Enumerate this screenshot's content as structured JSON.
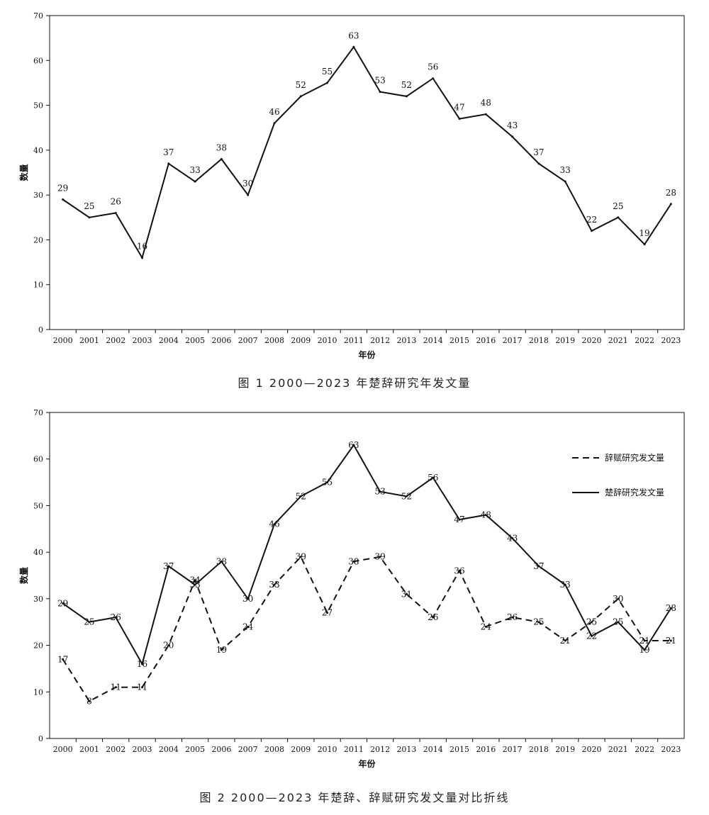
{
  "chart_data": [
    {
      "type": "line",
      "x": [
        2000,
        2001,
        2002,
        2003,
        2004,
        2005,
        2006,
        2007,
        2008,
        2009,
        2010,
        2011,
        2012,
        2013,
        2014,
        2015,
        2016,
        2017,
        2018,
        2019,
        2020,
        2021,
        2022,
        2023
      ],
      "series": [
        {
          "values": [
            29,
            25,
            26,
            16,
            37,
            33,
            38,
            30,
            46,
            52,
            55,
            63,
            53,
            52,
            56,
            47,
            48,
            43,
            37,
            33,
            22,
            25,
            19,
            28
          ],
          "style": "solid"
        }
      ],
      "xlabel": "年份",
      "ylabel": "数量",
      "ylim": [
        0,
        70
      ],
      "yticks": [
        0,
        10,
        20,
        30,
        40,
        50,
        60,
        70
      ],
      "grid": false,
      "caption": "图 1  2000—2023 年楚辞研究年发文量"
    },
    {
      "type": "line",
      "x": [
        2000,
        2001,
        2002,
        2003,
        2004,
        2005,
        2006,
        2007,
        2008,
        2009,
        2010,
        2011,
        2012,
        2013,
        2014,
        2015,
        2016,
        2017,
        2018,
        2019,
        2020,
        2021,
        2022,
        2023
      ],
      "series": [
        {
          "name": "辞赋研究发文量",
          "values": [
            17,
            8,
            11,
            11,
            20,
            34,
            19,
            24,
            33,
            39,
            27,
            38,
            39,
            31,
            26,
            36,
            24,
            26,
            25,
            21,
            25,
            30,
            21,
            21
          ],
          "style": "dashed"
        },
        {
          "name": "楚辞研究发文量",
          "values": [
            29,
            25,
            26,
            16,
            37,
            33,
            38,
            30,
            46,
            52,
            55,
            63,
            53,
            52,
            56,
            47,
            48,
            43,
            37,
            33,
            22,
            25,
            19,
            28
          ],
          "style": "solid"
        }
      ],
      "xlabel": "年份",
      "ylabel": "数量",
      "ylim": [
        0,
        70
      ],
      "yticks": [
        0,
        10,
        20,
        30,
        40,
        50,
        60,
        70
      ],
      "grid": false,
      "legend": "top-right",
      "caption": "图 2  2000—2023 年楚辞、辞赋研究发文量对比折线"
    }
  ],
  "colors": {
    "line": "#111111",
    "background": "#ffffff"
  }
}
